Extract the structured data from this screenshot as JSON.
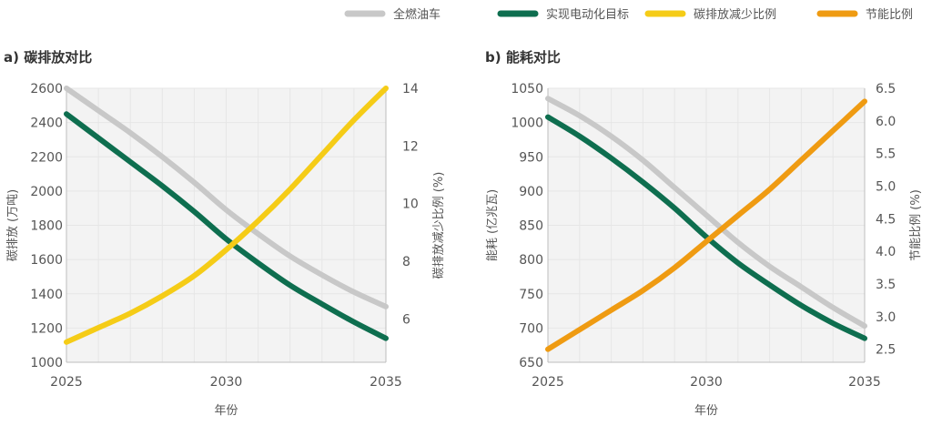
{
  "legend": [
    {
      "label": "全燃油车",
      "color": "#c8c8c8"
    },
    {
      "label": "实现电动化目标",
      "color": "#0e6e4f"
    },
    {
      "label": "碳排放减少比例",
      "color": "#f5cc17"
    },
    {
      "label": "节能比例",
      "color": "#ef9b12"
    }
  ],
  "xlabel": "年份",
  "chart_data": [
    {
      "type": "line",
      "title": "a) 碳排放对比",
      "x": [
        2025,
        2026,
        2027,
        2028,
        2029,
        2030,
        2031,
        2032,
        2033,
        2034,
        2035
      ],
      "xticks": [
        "2025",
        "2030",
        "2035"
      ],
      "xlabel": "年份",
      "ylabel": "碳排放 (万吨)",
      "ylim": [
        1000,
        2600
      ],
      "yticks": [
        "1000",
        "1200",
        "1400",
        "1600",
        "1800",
        "2000",
        "2200",
        "2400",
        "2600"
      ],
      "y2label": "碳排放减少比例 (%)",
      "y2lim": [
        4.5,
        14
      ],
      "y2ticks": [
        "6",
        "8",
        "10",
        "12",
        "14"
      ],
      "grid": true,
      "series": [
        {
          "name": "全燃油车",
          "axis": "left",
          "color": "#c8c8c8",
          "values": [
            2600,
            2470,
            2340,
            2200,
            2050,
            1890,
            1750,
            1620,
            1510,
            1410,
            1325
          ]
        },
        {
          "name": "实现电动化目标",
          "axis": "left",
          "color": "#0e6e4f",
          "values": [
            2450,
            2310,
            2170,
            2030,
            1880,
            1720,
            1580,
            1450,
            1340,
            1235,
            1140
          ]
        },
        {
          "name": "碳排放减少比例",
          "axis": "right",
          "color": "#f5cc17",
          "values": [
            5.2,
            5.7,
            6.2,
            6.8,
            7.5,
            8.4,
            9.4,
            10.5,
            11.7,
            12.9,
            14.0
          ]
        }
      ]
    },
    {
      "type": "line",
      "title": "b) 能耗对比",
      "x": [
        2025,
        2026,
        2027,
        2028,
        2029,
        2030,
        2031,
        2032,
        2033,
        2034,
        2035
      ],
      "xticks": [
        "2025",
        "2030",
        "2035"
      ],
      "xlabel": "年份",
      "ylabel": "能耗 (亿兆瓦)",
      "ylim": [
        650,
        1050
      ],
      "yticks": [
        "650",
        "700",
        "750",
        "800",
        "850",
        "900",
        "950",
        "1000",
        "1050"
      ],
      "y2label": "节能比例 (%)",
      "y2lim": [
        2.3,
        6.5
      ],
      "y2ticks": [
        "2.5",
        "3.0",
        "3.5",
        "4.0",
        "4.5",
        "5.0",
        "5.5",
        "6.0",
        "6.5"
      ],
      "grid": true,
      "series": [
        {
          "name": "全燃油车",
          "axis": "left",
          "color": "#c8c8c8",
          "values": [
            1035,
            1010,
            980,
            945,
            905,
            865,
            825,
            790,
            760,
            730,
            703
          ]
        },
        {
          "name": "实现电动化目标",
          "axis": "left",
          "color": "#0e6e4f",
          "values": [
            1008,
            980,
            948,
            913,
            875,
            833,
            795,
            763,
            733,
            707,
            685
          ]
        },
        {
          "name": "节能比例",
          "axis": "right",
          "color": "#ef9b12",
          "values": [
            2.5,
            2.8,
            3.1,
            3.4,
            3.75,
            4.15,
            4.55,
            4.95,
            5.4,
            5.85,
            6.3
          ]
        }
      ]
    }
  ]
}
